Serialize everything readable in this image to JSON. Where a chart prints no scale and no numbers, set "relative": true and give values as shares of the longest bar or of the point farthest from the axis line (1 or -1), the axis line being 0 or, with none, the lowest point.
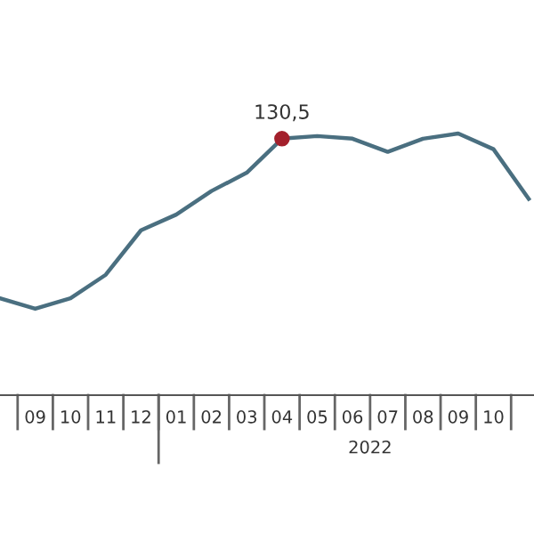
{
  "chart_data": {
    "type": "line",
    "relative": true,
    "categories": [
      null,
      "09",
      "10",
      "11",
      "12",
      "01",
      "02",
      "03",
      "04",
      "05",
      "06",
      "07",
      "08",
      "09",
      "10",
      null
    ],
    "series": [
      {
        "color": "#4a6f80",
        "values": [
          0.37,
          0.33,
          0.37,
          0.46,
          0.63,
          0.69,
          0.78,
          0.85,
          0.98,
          0.99,
          0.98,
          0.93,
          0.98,
          1,
          0.94,
          0.75
        ]
      },
      {
        "type": "scatter",
        "color": "#a3202c",
        "marker": "circle",
        "x": [
          "04"
        ],
        "values": [
          0.98
        ]
      }
    ],
    "annotations": [
      {
        "text": "130,5",
        "x": "04",
        "y": 0.98
      },
      "2022"
    ],
    "grid": false,
    "legend": false
  }
}
